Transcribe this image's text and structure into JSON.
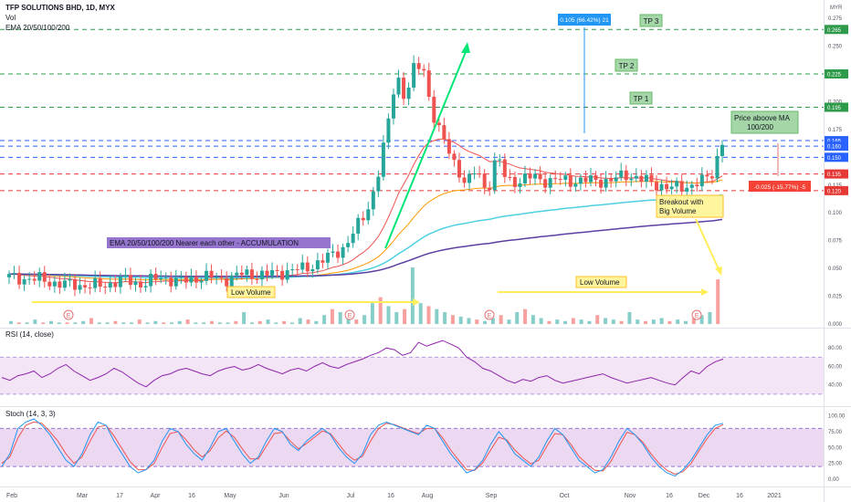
{
  "header": {
    "symbol_line": "TFP SOLUTIONS BHD, 1D, MYX",
    "vol_label": "Vol",
    "ema_label": "EMA 20/50/100/200",
    "currency": "MYR"
  },
  "price_axis": {
    "ticks": [
      "0.275",
      "0.250",
      "0.225",
      "0.200",
      "0.175",
      "0.150",
      "0.125",
      "0.100",
      "0.075",
      "0.050",
      "0.025",
      "0.000"
    ],
    "tick_values": [
      0.275,
      0.25,
      0.225,
      0.2,
      0.175,
      0.15,
      0.125,
      0.1,
      0.075,
      0.05,
      0.025,
      0.0
    ],
    "ylim": [
      0.0,
      0.28
    ]
  },
  "level_tags": [
    {
      "label": "0.265",
      "value": 0.265,
      "color": "#2e9b4a"
    },
    {
      "label": "0.225",
      "value": 0.225,
      "color": "#2e9b4a"
    },
    {
      "label": "0.195",
      "value": 0.195,
      "color": "#2e9b4a"
    },
    {
      "label": "0.165",
      "value": 0.165,
      "color": "#2962ff"
    },
    {
      "label": "0.160",
      "value": 0.16,
      "color": "#2962ff"
    },
    {
      "label": "0.150",
      "value": 0.15,
      "color": "#2962ff"
    },
    {
      "label": "0.135",
      "value": 0.135,
      "color": "#e53935"
    },
    {
      "label": "0.120",
      "value": 0.12,
      "color": "#e53935"
    }
  ],
  "rsi": {
    "label": "RSI (14, close)",
    "ticks": [
      "80.00",
      "60.00",
      "40.00"
    ],
    "tick_values": [
      80,
      60,
      40
    ],
    "band": [
      30,
      70
    ],
    "ylim": [
      20,
      95
    ]
  },
  "stoch": {
    "label": "Stoch (14, 3, 3)",
    "ticks": [
      "100.00",
      "75.00",
      "50.00",
      "25.00",
      "0.00"
    ],
    "tick_values": [
      100,
      75,
      50,
      25,
      0
    ],
    "band": [
      20,
      80
    ],
    "ylim": [
      -10,
      105
    ]
  },
  "date_axis": {
    "labels": [
      "Feb",
      "Mar",
      "17",
      "Apr",
      "16",
      "May",
      "Jun",
      "Jul",
      "16",
      "Aug",
      "Sep",
      "Oct",
      "Nov",
      "16",
      "Dec",
      "16",
      "2021"
    ]
  },
  "annotations": {
    "tp1": "TP 1",
    "tp2": "TP 2",
    "tp3": "TP 3",
    "gain_measure": "0.105 (66.42%) 21",
    "loss_measure": "-0.025 (-15.77%) -5",
    "accumulation": "EMA 20/50/100/200 Nearer each other - ACCUMULATION",
    "low_volume_left": "Low Volume",
    "low_volume_right": "Low Volume",
    "breakout_line1": "Breakout with",
    "breakout_line2": "Big Volume",
    "price_above_line1": "Price aboove MA",
    "price_above_line2": "100/200",
    "earnings_marker": "E"
  },
  "colors": {
    "up": "#26a69a",
    "down": "#ef5350",
    "target_line": "#2e9b4a",
    "entry_line": "#2962ff",
    "stop_line": "#e53935",
    "rsi_line": "#8e24aa",
    "rsi_band": "#f3e5f5",
    "stoch_k": "#2196f3",
    "stoch_d": "#ef5350",
    "stoch_band": "#e1bee7",
    "ema20": "#ef5350",
    "ema50": "#ff9800",
    "ema100": "#4dd0e1",
    "ema200": "#5c3fa3",
    "arrow_green": "#00e676",
    "arrow_yellow": "#ffee58",
    "note_yellow": "#fff59d",
    "note_green": "#a5d6a7",
    "note_purple": "#9575cd"
  },
  "chart_data": {
    "type": "candlestick",
    "title": "TFP SOLUTIONS BHD, 1D, MYX",
    "price_series_path": [
      [
        0,
        0.042
      ],
      [
        6,
        0.04
      ],
      [
        10,
        0.036
      ],
      [
        14,
        0.035
      ],
      [
        18,
        0.034
      ],
      [
        22,
        0.04
      ],
      [
        26,
        0.036
      ],
      [
        30,
        0.042
      ],
      [
        34,
        0.038
      ],
      [
        38,
        0.043
      ],
      [
        42,
        0.04
      ],
      [
        46,
        0.045
      ],
      [
        50,
        0.044
      ],
      [
        54,
        0.047
      ],
      [
        58,
        0.05
      ],
      [
        62,
        0.058
      ],
      [
        66,
        0.07
      ],
      [
        70,
        0.1
      ],
      [
        72,
        0.125
      ],
      [
        74,
        0.17
      ],
      [
        75,
        0.195
      ],
      [
        76,
        0.23
      ],
      [
        77,
        0.21
      ],
      [
        78,
        0.2
      ],
      [
        79,
        0.23
      ],
      [
        80,
        0.225
      ],
      [
        81,
        0.24
      ],
      [
        82,
        0.215
      ],
      [
        83,
        0.19
      ],
      [
        84,
        0.18
      ],
      [
        85,
        0.165
      ],
      [
        86,
        0.16
      ],
      [
        87,
        0.15
      ],
      [
        88,
        0.14
      ],
      [
        89,
        0.13
      ],
      [
        90,
        0.125
      ],
      [
        91,
        0.135
      ],
      [
        92,
        0.14
      ],
      [
        93,
        0.125
      ],
      [
        94,
        0.12
      ],
      [
        95,
        0.14
      ],
      [
        96,
        0.15
      ],
      [
        97,
        0.135
      ],
      [
        98,
        0.13
      ],
      [
        100,
        0.128
      ],
      [
        103,
        0.133
      ],
      [
        106,
        0.128
      ],
      [
        109,
        0.13
      ],
      [
        112,
        0.128
      ],
      [
        115,
        0.13
      ],
      [
        118,
        0.128
      ],
      [
        121,
        0.135
      ],
      [
        124,
        0.13
      ],
      [
        127,
        0.126
      ],
      [
        130,
        0.122
      ],
      [
        133,
        0.124
      ],
      [
        136,
        0.128
      ],
      [
        138,
        0.135
      ],
      [
        139,
        0.15
      ],
      [
        140,
        0.165
      ]
    ],
    "levels": {
      "targets": [
        0.265,
        0.225,
        0.195
      ],
      "entry_zone": [
        0.165,
        0.16,
        0.15
      ],
      "stops": [
        0.135,
        0.12
      ]
    },
    "rsi_series": [
      48,
      45,
      50,
      52,
      55,
      48,
      52,
      58,
      62,
      55,
      50,
      45,
      48,
      52,
      58,
      54,
      48,
      42,
      38,
      45,
      50,
      52,
      56,
      58,
      55,
      52,
      50,
      55,
      58,
      60,
      56,
      58,
      62,
      58,
      55,
      52,
      56,
      58,
      55,
      60,
      64,
      60,
      58,
      62,
      65,
      68,
      72,
      75,
      80,
      78,
      72,
      75,
      86,
      82,
      85,
      88,
      84,
      80,
      70,
      65,
      58,
      55,
      50,
      45,
      42,
      46,
      44,
      48,
      50,
      45,
      42,
      44,
      46,
      48,
      50,
      52,
      48,
      45,
      42,
      44,
      46,
      48,
      45,
      42,
      40,
      48,
      55,
      52,
      60,
      65,
      68
    ],
    "stoch_k_series": [
      20,
      40,
      80,
      90,
      95,
      85,
      70,
      50,
      30,
      20,
      40,
      70,
      90,
      85,
      60,
      40,
      20,
      10,
      15,
      30,
      60,
      80,
      75,
      55,
      40,
      30,
      50,
      75,
      80,
      60,
      40,
      25,
      35,
      60,
      80,
      75,
      55,
      45,
      60,
      70,
      80,
      70,
      50,
      35,
      25,
      40,
      70,
      85,
      90,
      85,
      80,
      75,
      70,
      85,
      80,
      60,
      40,
      25,
      10,
      15,
      30,
      55,
      75,
      60,
      40,
      30,
      20,
      35,
      60,
      80,
      70,
      50,
      30,
      20,
      10,
      15,
      35,
      60,
      80,
      70,
      55,
      35,
      20,
      10,
      5,
      15,
      30,
      50,
      70,
      85,
      88
    ],
    "stoch_d_series": [
      25,
      35,
      65,
      85,
      90,
      88,
      75,
      60,
      40,
      25,
      35,
      60,
      82,
      85,
      68,
      48,
      28,
      15,
      15,
      25,
      50,
      72,
      75,
      62,
      46,
      35,
      45,
      65,
      76,
      66,
      48,
      32,
      32,
      52,
      72,
      74,
      60,
      48,
      56,
      66,
      76,
      72,
      56,
      40,
      30,
      36,
      60,
      80,
      88,
      86,
      81,
      76,
      72,
      80,
      80,
      65,
      46,
      30,
      15,
      14,
      26,
      46,
      66,
      62,
      46,
      34,
      24,
      30,
      52,
      72,
      70,
      55,
      36,
      24,
      14,
      13,
      28,
      52,
      74,
      70,
      58,
      40,
      25,
      14,
      8,
      12,
      25,
      45,
      64,
      80,
      86
    ],
    "volume_series": [
      2,
      1,
      1,
      3,
      1,
      2,
      1,
      1,
      1,
      2,
      4,
      1,
      1,
      2,
      1,
      1,
      3,
      1,
      2,
      1,
      1,
      2,
      3,
      1,
      1,
      2,
      1,
      1,
      2,
      8,
      1,
      2,
      3,
      1,
      2,
      1,
      4,
      3,
      2,
      6,
      10,
      8,
      4,
      3,
      6,
      14,
      18,
      12,
      8,
      10,
      38,
      14,
      12,
      10,
      8,
      6,
      5,
      4,
      3,
      2,
      4,
      6,
      3,
      8,
      10,
      6,
      4,
      2,
      3,
      2,
      4,
      3,
      2,
      6,
      4,
      3,
      2,
      8,
      3,
      2,
      3,
      4,
      2,
      3,
      2,
      4,
      6,
      8,
      30
    ]
  }
}
